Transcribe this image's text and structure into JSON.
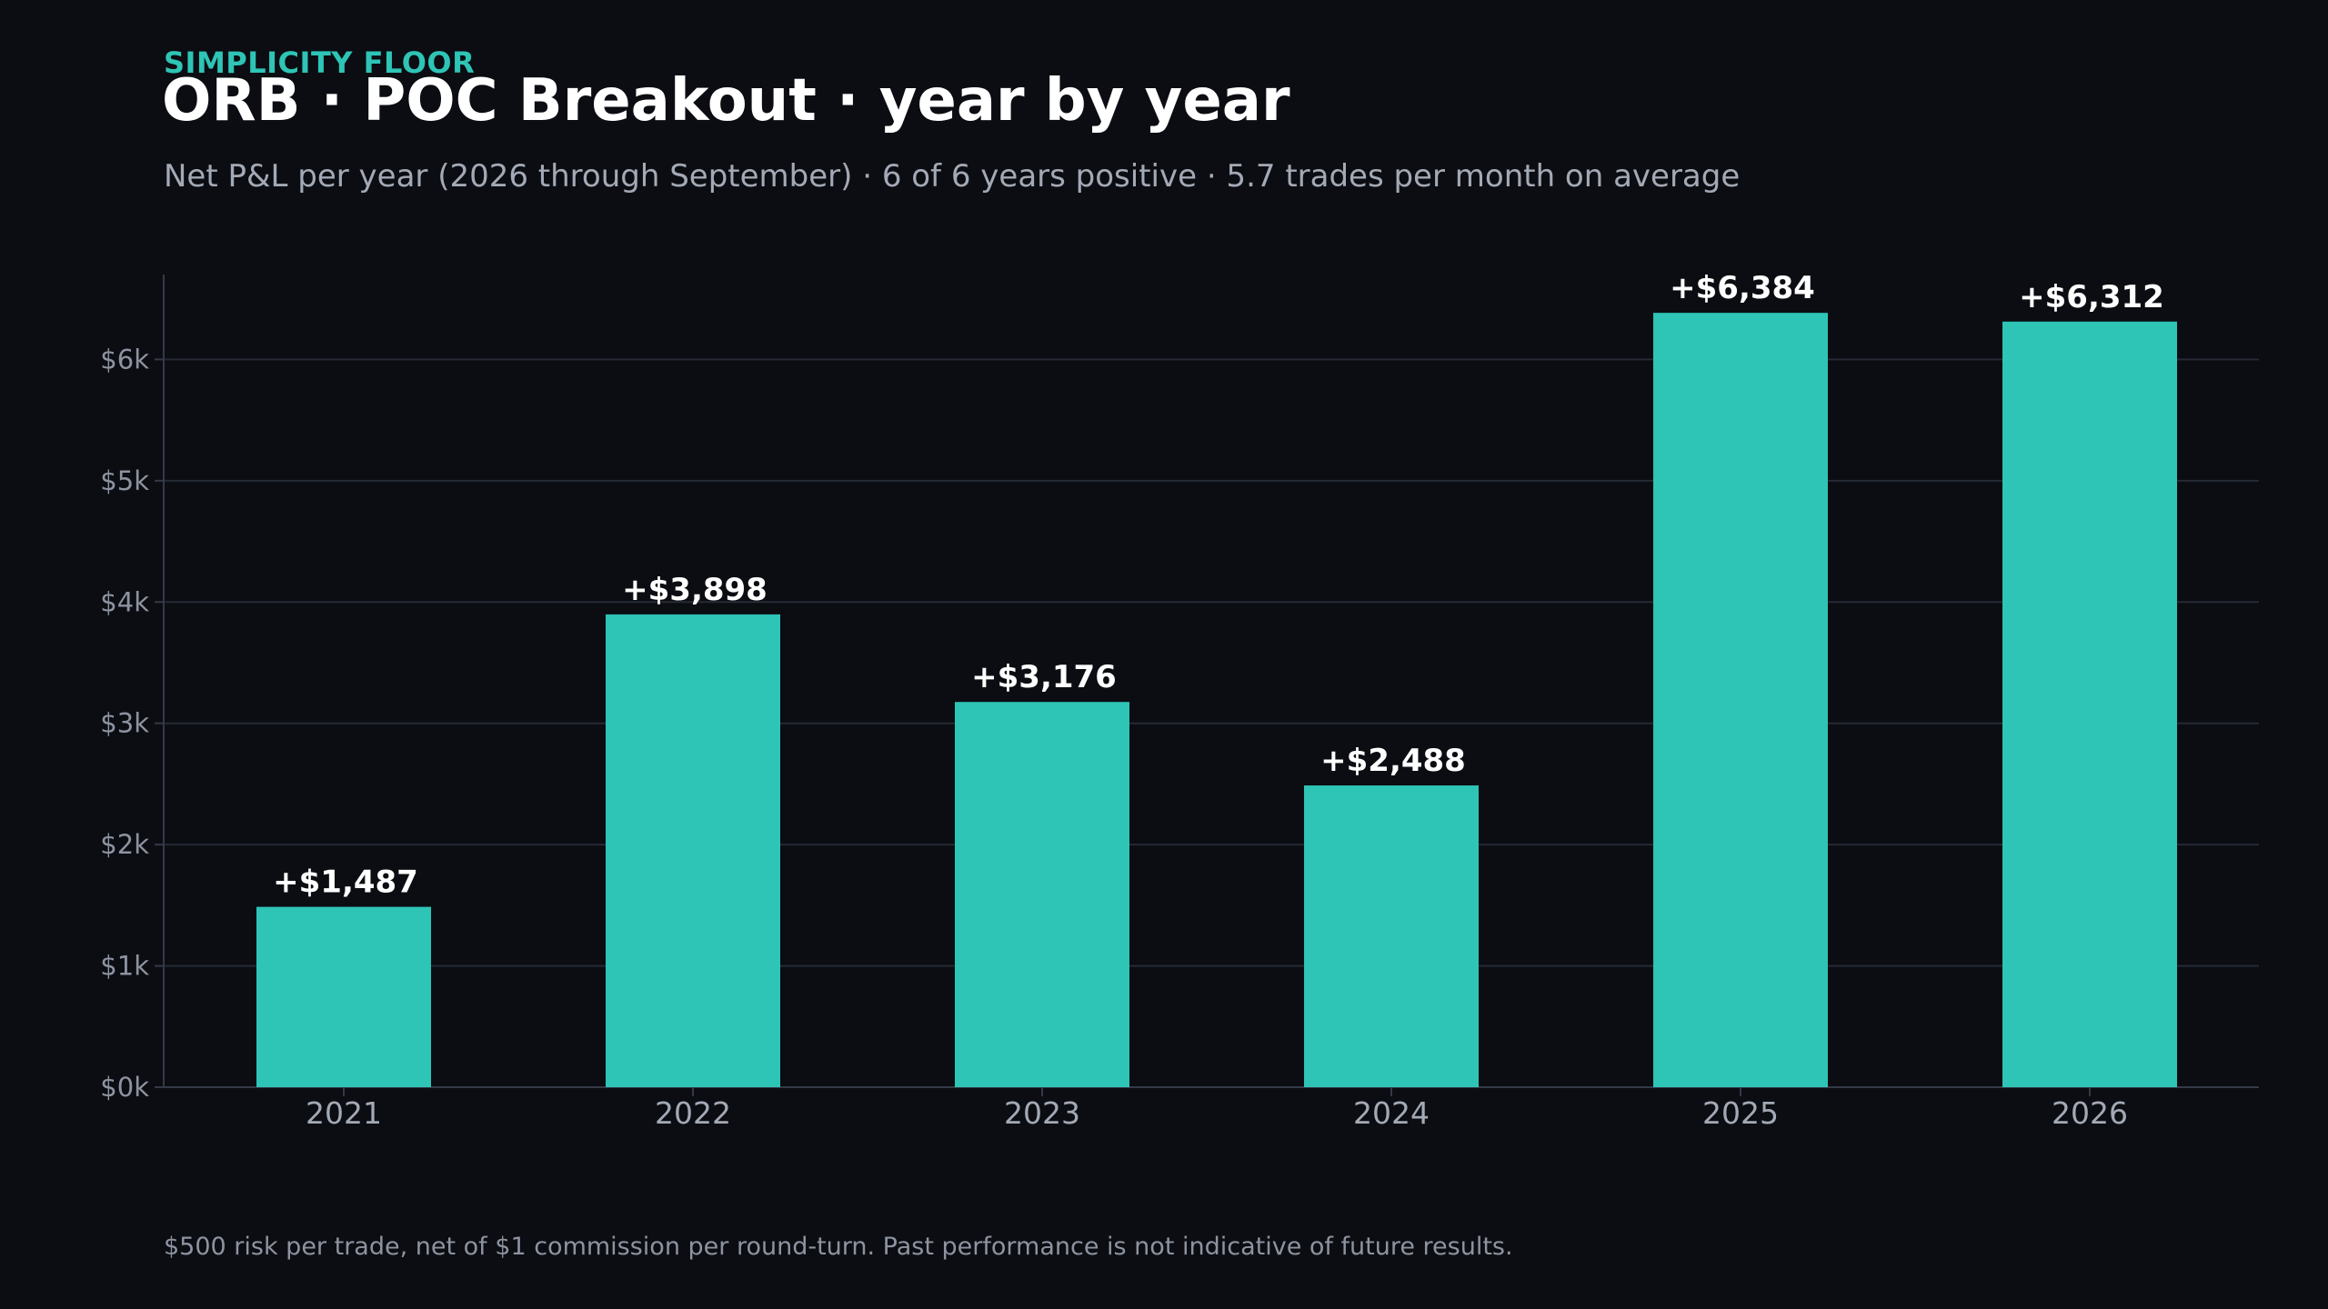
{
  "header": {
    "eyebrow": "SIMPLICITY FLOOR",
    "title": "ORB · POC Breakout · year by year",
    "subtitle": "Net P&L per year (2026 through September) · 6 of 6 years positive · 5.7 trades per month on average"
  },
  "footer": {
    "note": "$500 risk per trade, net of $1 commission per round-turn. Past performance is not indicative of future results."
  },
  "chart_data": {
    "type": "bar",
    "categories": [
      "2021",
      "2022",
      "2023",
      "2024",
      "2025",
      "2026"
    ],
    "values": [
      1487,
      3898,
      3176,
      2488,
      6384,
      6312
    ],
    "data_labels": [
      "+$1,487",
      "+$3,898",
      "+$3,176",
      "+$2,488",
      "+$6,384",
      "+$6,312"
    ],
    "yticks": [
      0,
      1000,
      2000,
      3000,
      4000,
      5000,
      6000
    ],
    "ytick_labels": [
      "$0k",
      "$1k",
      "$2k",
      "$3k",
      "$4k",
      "$5k",
      "$6k"
    ],
    "ylim": [
      0,
      6700
    ],
    "grid": true,
    "bar_color": "#2ec4b6",
    "xlabel": "",
    "ylabel": ""
  }
}
